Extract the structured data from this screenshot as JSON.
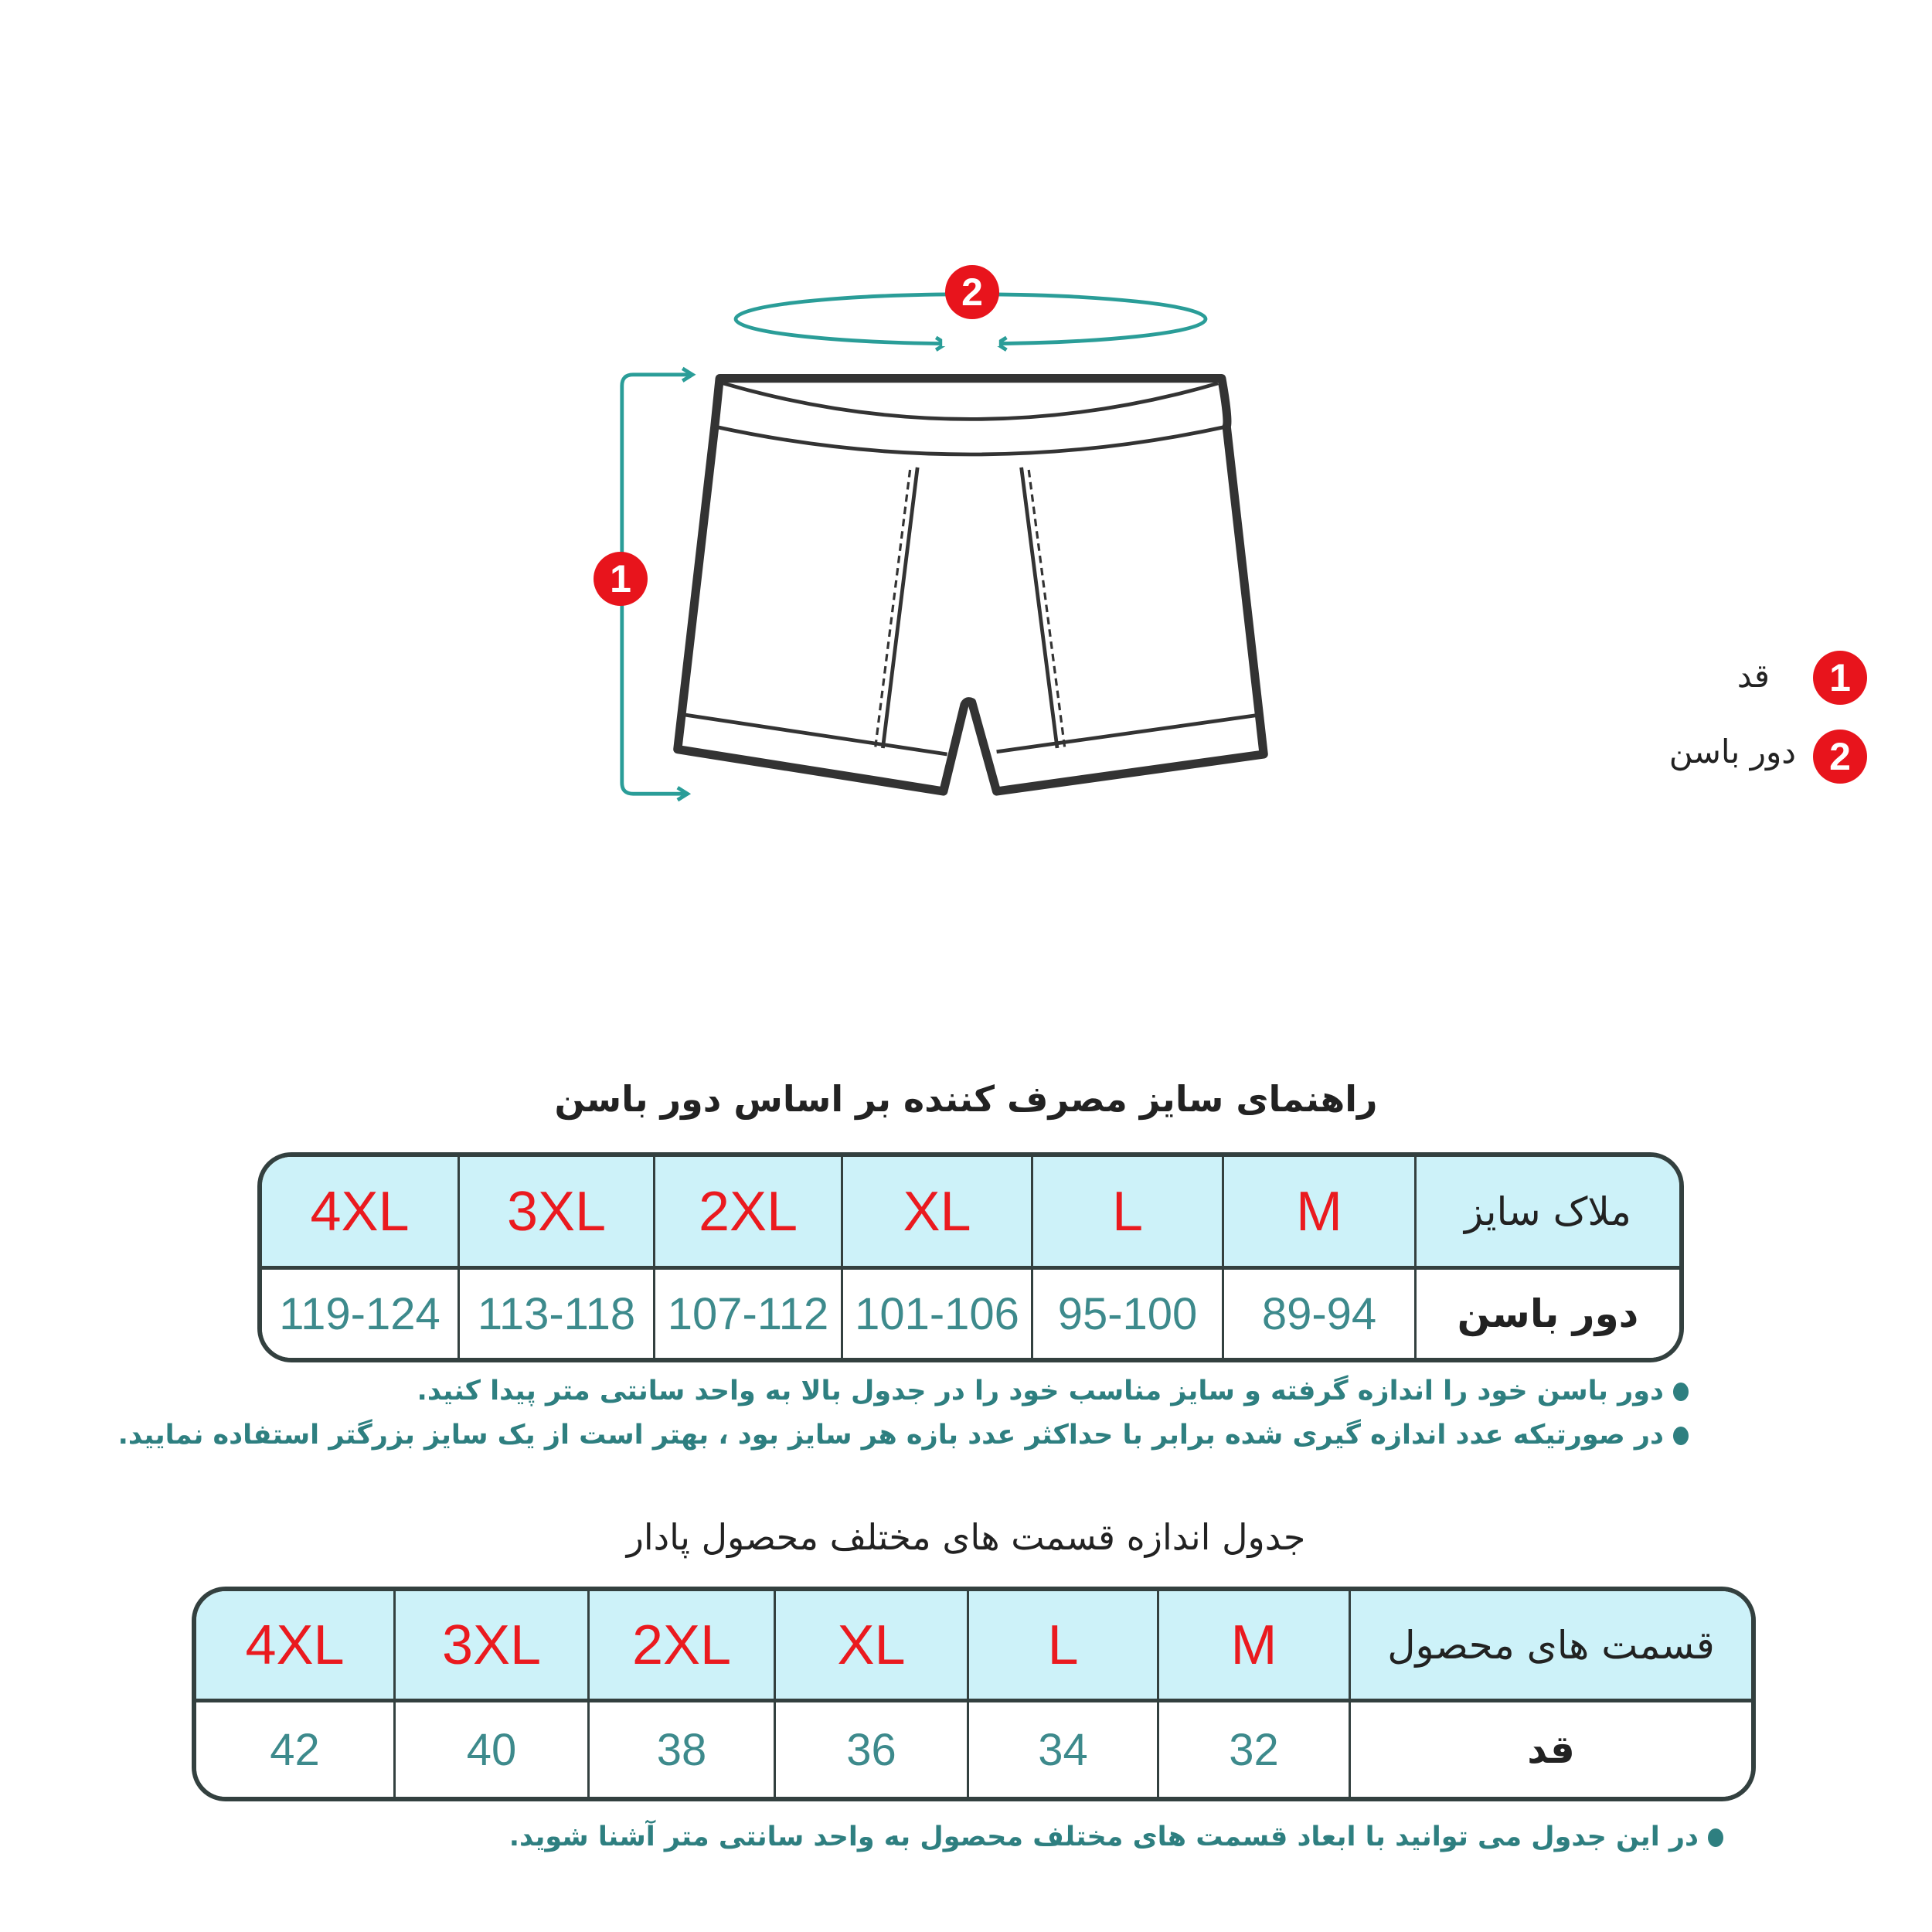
{
  "diagram": {
    "markers": [
      {
        "number": "1",
        "label": "قد"
      },
      {
        "number": "2",
        "label": "دور باسن"
      }
    ],
    "accent_color": "#2a9d98",
    "marker_color": "#e8141c"
  },
  "hip_table": {
    "title": "راهنمای سایز مصرف کننده بر اساس دور باسن",
    "header_label": "ملاک سایز",
    "row_label": "دور باسن",
    "sizes": [
      "M",
      "L",
      "XL",
      "2XL",
      "3XL",
      "4XL"
    ],
    "values": [
      "89-94",
      "95-100",
      "101-106",
      "107-112",
      "113-118",
      "119-124"
    ],
    "notes": [
      "دور باسن خود را اندازه گرفته و سایز مناسب خود را در جدول بالا به واحد سانتی متر پیدا کنید.",
      "در صورتیکه عدد اندازه گیری شده برابر با حداکثر عدد بازه هر سایز بود ، بهتر است از یک سایز بزرگتر استفاده نمایید."
    ]
  },
  "product_table": {
    "title": "جدول اندازه قسمت های مختلف محصول پادار",
    "header_label": "قسمت های محصول",
    "row_label": "قد",
    "sizes": [
      "M",
      "L",
      "XL",
      "2XL",
      "3XL",
      "4XL"
    ],
    "values": [
      "32",
      "34",
      "36",
      "38",
      "40",
      "42"
    ],
    "notes": [
      "در این جدول می توانید با ابعاد قسمت های مختلف محصول به واحد سانتی متر آشنا شوید."
    ]
  }
}
